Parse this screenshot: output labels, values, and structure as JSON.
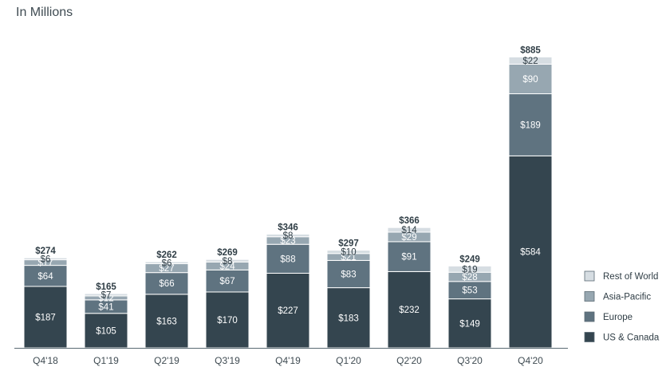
{
  "chart_data": {
    "type": "bar",
    "stacked": true,
    "title": "In Millions",
    "categories": [
      "Q4'18",
      "Q1'19",
      "Q2'19",
      "Q3'19",
      "Q4'19",
      "Q1'20",
      "Q2'20",
      "Q3'20",
      "Q4'20"
    ],
    "series": [
      {
        "name": "US & Canada",
        "color": "#34454f",
        "values": [
          187,
          105,
          163,
          170,
          227,
          183,
          232,
          149,
          584
        ],
        "labels": [
          "$187",
          "$105",
          "$163",
          "$170",
          "$227",
          "$183",
          "$232",
          "$149",
          "$584"
        ]
      },
      {
        "name": "Europe",
        "color": "#5f7380",
        "values": [
          64,
          41,
          66,
          67,
          88,
          83,
          91,
          53,
          189
        ],
        "labels": [
          "$64",
          "$41",
          "$66",
          "$67",
          "$88",
          "$83",
          "$91",
          "$53",
          "$189"
        ]
      },
      {
        "name": "Asia-Pacific",
        "color": "#97a7b1",
        "values": [
          17,
          12,
          27,
          24,
          23,
          21,
          29,
          28,
          90
        ],
        "labels": [
          "$17",
          "$12",
          "$27",
          "$24",
          "$23",
          "$21",
          "$29",
          "$28",
          "$90"
        ]
      },
      {
        "name": "Rest of World",
        "color": "#d6dde2",
        "values": [
          6,
          7,
          6,
          8,
          8,
          10,
          14,
          19,
          22
        ],
        "labels": [
          "$6",
          "$7",
          "$6",
          "$8",
          "$8",
          "$10",
          "$14",
          "$19",
          "$22"
        ]
      }
    ],
    "totals": [
      "$274",
      "$165",
      "$262",
      "$269",
      "$346",
      "$297",
      "$366",
      "$249",
      "$885"
    ],
    "legend": {
      "position": "right",
      "order": [
        "Rest of World",
        "Asia-Pacific",
        "Europe",
        "US & Canada"
      ]
    },
    "grid": false
  }
}
